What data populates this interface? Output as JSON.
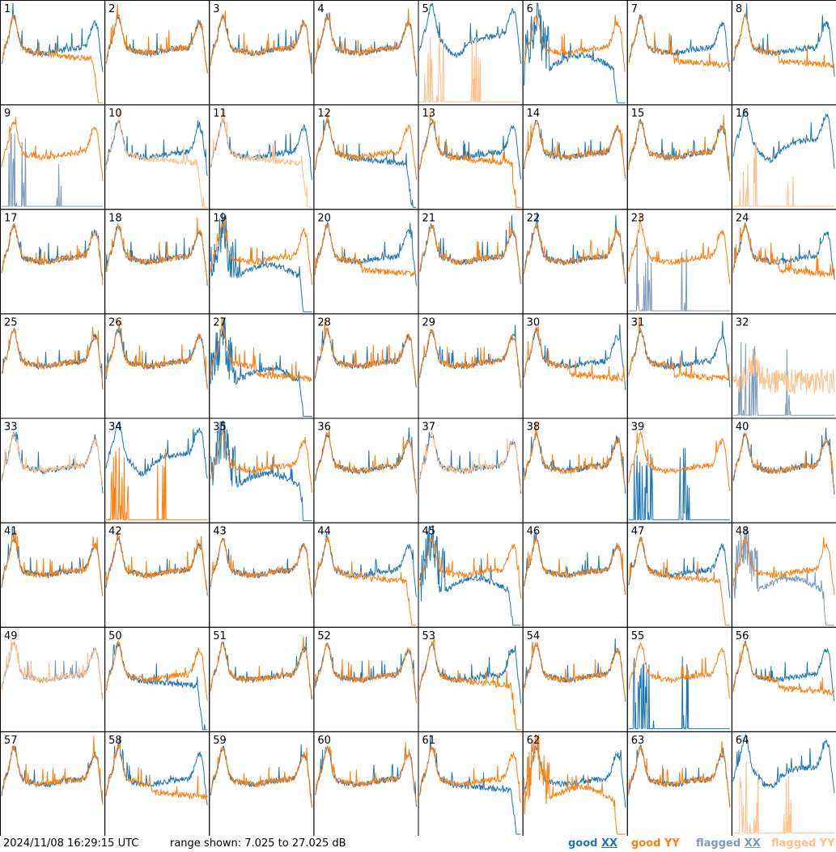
{
  "footer": {
    "timestamp": "2024/11/08 16:29:15 UTC",
    "range": "range shown: 7.025 to 27.025 dB"
  },
  "legend": [
    {
      "id": "good-xx",
      "prefix": "good ",
      "suffix": "XX",
      "color": "#1f77b4"
    },
    {
      "id": "good-yy",
      "prefix": "good ",
      "suffix": "YY",
      "color": "#ff7f0e"
    },
    {
      "id": "flagged-xx",
      "prefix": "flagged ",
      "suffix": "XX",
      "color": "#7f9bb8"
    },
    {
      "id": "flagged-yy",
      "prefix": "flagged ",
      "suffix": "YY",
      "color": "#ffc08a"
    }
  ],
  "colors": {
    "good_xx": "#1f77b4",
    "good_yy": "#ff7f0e",
    "flagged_xx": "#7f9bb8",
    "flagged_yy": "#ffc08a"
  },
  "chart_data": {
    "type": "line",
    "ylim": [
      7.025,
      27.025
    ],
    "unit": "dB",
    "grid": "8x8 small multiples",
    "panels": [
      {
        "label": "1",
        "xx": "good",
        "yy": "good",
        "xx_shape": "standard",
        "yy_shape": "plateau_drop"
      },
      {
        "label": "2",
        "xx": "good",
        "yy": "good",
        "xx_shape": "standard",
        "yy_shape": "standard"
      },
      {
        "label": "3",
        "xx": "good",
        "yy": "good",
        "xx_shape": "standard",
        "yy_shape": "standard"
      },
      {
        "label": "4",
        "xx": "good",
        "yy": "good",
        "xx_shape": "standard",
        "yy_shape": "standard"
      },
      {
        "label": "5",
        "xx": "good",
        "yy": "flagged",
        "xx_shape": "high_dip",
        "yy_shape": "spikes_low"
      },
      {
        "label": "6",
        "xx": "good",
        "yy": "good",
        "xx_shape": "drop_low",
        "yy_shape": "standard"
      },
      {
        "label": "7",
        "xx": "good",
        "yy": "good",
        "xx_shape": "standard",
        "yy_shape": "plateau"
      },
      {
        "label": "8",
        "xx": "good",
        "yy": "good",
        "xx_shape": "standard",
        "yy_shape": "plateau"
      },
      {
        "label": "9",
        "xx": "flagged",
        "yy": "good",
        "xx_shape": "spikes_low",
        "yy_shape": "standard"
      },
      {
        "label": "10",
        "xx": "good",
        "yy": "flagged",
        "xx_shape": "standard",
        "yy_shape": "plateau_drop"
      },
      {
        "label": "11",
        "xx": "good",
        "yy": "flagged",
        "xx_shape": "standard",
        "yy_shape": "plateau_drop"
      },
      {
        "label": "12",
        "xx": "good",
        "yy": "good",
        "xx_shape": "plateau_drop",
        "yy_shape": "standard"
      },
      {
        "label": "13",
        "xx": "good",
        "yy": "good",
        "xx_shape": "standard",
        "yy_shape": "plateau_drop"
      },
      {
        "label": "14",
        "xx": "good",
        "yy": "good",
        "xx_shape": "standard",
        "yy_shape": "standard"
      },
      {
        "label": "15",
        "xx": "good",
        "yy": "good",
        "xx_shape": "standard",
        "yy_shape": "standard"
      },
      {
        "label": "16",
        "xx": "good",
        "yy": "flagged",
        "xx_shape": "high_dip",
        "yy_shape": "spikes_low"
      },
      {
        "label": "17",
        "xx": "good",
        "yy": "good",
        "xx_shape": "standard",
        "yy_shape": "standard"
      },
      {
        "label": "18",
        "xx": "good",
        "yy": "good",
        "xx_shape": "standard",
        "yy_shape": "standard"
      },
      {
        "label": "19",
        "xx": "good",
        "yy": "good",
        "xx_shape": "drop_low",
        "yy_shape": "standard"
      },
      {
        "label": "20",
        "xx": "good",
        "yy": "good",
        "xx_shape": "standard",
        "yy_shape": "plateau"
      },
      {
        "label": "21",
        "xx": "good",
        "yy": "good",
        "xx_shape": "standard",
        "yy_shape": "standard"
      },
      {
        "label": "22",
        "xx": "good",
        "yy": "good",
        "xx_shape": "standard",
        "yy_shape": "standard"
      },
      {
        "label": "23",
        "xx": "flagged",
        "yy": "good",
        "xx_shape": "spikes_low",
        "yy_shape": "standard"
      },
      {
        "label": "24",
        "xx": "good",
        "yy": "good",
        "xx_shape": "standard",
        "yy_shape": "plateau"
      },
      {
        "label": "25",
        "xx": "good",
        "yy": "good",
        "xx_shape": "standard",
        "yy_shape": "standard"
      },
      {
        "label": "26",
        "xx": "good",
        "yy": "good",
        "xx_shape": "standard",
        "yy_shape": "standard"
      },
      {
        "label": "27",
        "xx": "good",
        "yy": "good",
        "xx_shape": "drop_low",
        "yy_shape": "plateau"
      },
      {
        "label": "28",
        "xx": "good",
        "yy": "good",
        "xx_shape": "standard",
        "yy_shape": "standard"
      },
      {
        "label": "29",
        "xx": "good",
        "yy": "good",
        "xx_shape": "standard",
        "yy_shape": "standard"
      },
      {
        "label": "30",
        "xx": "good",
        "yy": "good",
        "xx_shape": "standard",
        "yy_shape": "plateau"
      },
      {
        "label": "31",
        "xx": "good",
        "yy": "good",
        "xx_shape": "standard",
        "yy_shape": "plateau"
      },
      {
        "label": "32",
        "xx": "flagged",
        "yy": "flagged",
        "xx_shape": "spikes_low",
        "yy_shape": "noisy"
      },
      {
        "label": "33",
        "xx": "good",
        "yy": "flagged",
        "xx_shape": "standard",
        "yy_shape": "standard"
      },
      {
        "label": "34",
        "xx": "good",
        "yy": "good",
        "xx_shape": "high_dip",
        "yy_shape": "spikes_low"
      },
      {
        "label": "35",
        "xx": "good",
        "yy": "good",
        "xx_shape": "drop_low",
        "yy_shape": "standard"
      },
      {
        "label": "36",
        "xx": "good",
        "yy": "good",
        "xx_shape": "standard",
        "yy_shape": "standard"
      },
      {
        "label": "37",
        "xx": "good",
        "yy": "flagged",
        "xx_shape": "standard",
        "yy_shape": "standard"
      },
      {
        "label": "38",
        "xx": "good",
        "yy": "good",
        "xx_shape": "standard",
        "yy_shape": "standard"
      },
      {
        "label": "39",
        "xx": "good",
        "yy": "good",
        "xx_shape": "spikes_low",
        "yy_shape": "standard"
      },
      {
        "label": "40",
        "xx": "good",
        "yy": "good",
        "xx_shape": "standard",
        "yy_shape": "standard"
      },
      {
        "label": "41",
        "xx": "good",
        "yy": "good",
        "xx_shape": "standard",
        "yy_shape": "standard"
      },
      {
        "label": "42",
        "xx": "good",
        "yy": "good",
        "xx_shape": "standard",
        "yy_shape": "standard"
      },
      {
        "label": "43",
        "xx": "good",
        "yy": "good",
        "xx_shape": "standard",
        "yy_shape": "standard"
      },
      {
        "label": "44",
        "xx": "good",
        "yy": "good",
        "xx_shape": "standard",
        "yy_shape": "plateau_drop"
      },
      {
        "label": "45",
        "xx": "good",
        "yy": "good",
        "xx_shape": "drop_low",
        "yy_shape": "standard"
      },
      {
        "label": "46",
        "xx": "good",
        "yy": "good",
        "xx_shape": "standard",
        "yy_shape": "standard"
      },
      {
        "label": "47",
        "xx": "good",
        "yy": "good",
        "xx_shape": "standard",
        "yy_shape": "plateau_drop"
      },
      {
        "label": "48",
        "xx": "flagged",
        "yy": "good",
        "xx_shape": "drop_low",
        "yy_shape": "standard"
      },
      {
        "label": "49",
        "xx": "flagged",
        "yy": "flagged",
        "xx_shape": "standard",
        "yy_shape": "standard"
      },
      {
        "label": "50",
        "xx": "good",
        "yy": "good",
        "xx_shape": "plateau_drop",
        "yy_shape": "standard"
      },
      {
        "label": "51",
        "xx": "good",
        "yy": "good",
        "xx_shape": "standard",
        "yy_shape": "standard"
      },
      {
        "label": "52",
        "xx": "good",
        "yy": "good",
        "xx_shape": "standard",
        "yy_shape": "standard"
      },
      {
        "label": "53",
        "xx": "good",
        "yy": "good",
        "xx_shape": "standard",
        "yy_shape": "plateau_drop"
      },
      {
        "label": "54",
        "xx": "good",
        "yy": "good",
        "xx_shape": "standard",
        "yy_shape": "standard"
      },
      {
        "label": "55",
        "xx": "good",
        "yy": "good",
        "xx_shape": "spikes_low",
        "yy_shape": "standard"
      },
      {
        "label": "56",
        "xx": "good",
        "yy": "good",
        "xx_shape": "standard",
        "yy_shape": "plateau"
      },
      {
        "label": "57",
        "xx": "good",
        "yy": "good",
        "xx_shape": "standard",
        "yy_shape": "standard"
      },
      {
        "label": "58",
        "xx": "good",
        "yy": "good",
        "xx_shape": "standard",
        "yy_shape": "plateau"
      },
      {
        "label": "59",
        "xx": "good",
        "yy": "good",
        "xx_shape": "standard",
        "yy_shape": "standard"
      },
      {
        "label": "60",
        "xx": "good",
        "yy": "good",
        "xx_shape": "standard",
        "yy_shape": "standard"
      },
      {
        "label": "61",
        "xx": "good",
        "yy": "good",
        "xx_shape": "plateau_drop",
        "yy_shape": "standard"
      },
      {
        "label": "62",
        "xx": "good",
        "yy": "good",
        "xx_shape": "standard",
        "yy_shape": "drop_low"
      },
      {
        "label": "63",
        "xx": "good",
        "yy": "good",
        "xx_shape": "standard",
        "yy_shape": "standard"
      },
      {
        "label": "64",
        "xx": "good",
        "yy": "flagged",
        "xx_shape": "high_dip",
        "yy_shape": "spikes_low"
      }
    ]
  }
}
